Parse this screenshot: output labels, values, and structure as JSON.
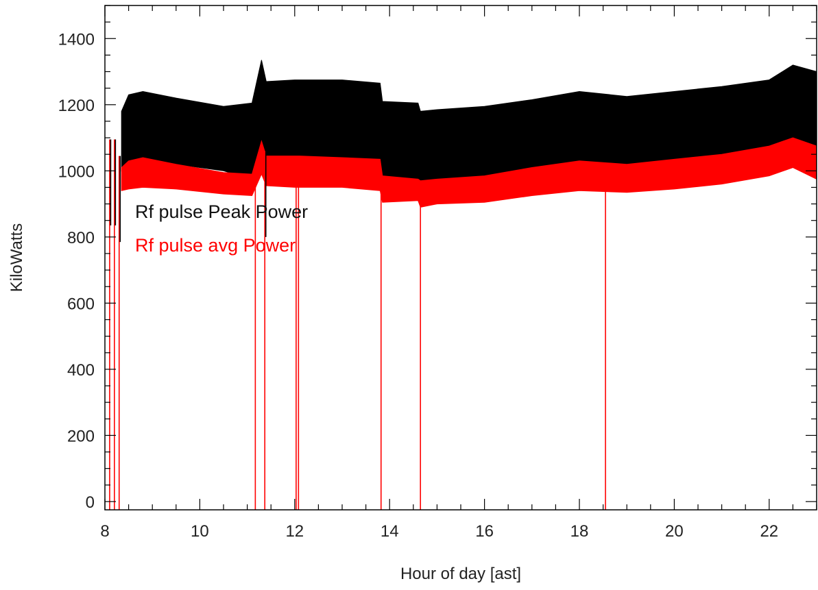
{
  "chart_data": {
    "type": "line",
    "title": "",
    "xlabel": "Hour of day [ast]",
    "ylabel": "KiloWatts",
    "xlim": [
      8,
      23
    ],
    "ylim": [
      -25,
      1500
    ],
    "x_ticks": [
      8,
      10,
      12,
      14,
      16,
      18,
      20,
      22
    ],
    "y_ticks": [
      0,
      200,
      400,
      600,
      800,
      1000,
      1200,
      1400
    ],
    "grid": false,
    "legend_placement": "upper-left inside plot",
    "series": [
      {
        "name": "Rf pulse Peak Power",
        "color": "#000000",
        "style": "dense band between lower and upper envelope",
        "x": [
          8.35,
          8.5,
          8.8,
          9.5,
          10.5,
          11.1,
          11.3,
          11.4,
          12.0,
          12.1,
          13.0,
          13.8,
          13.85,
          14.6,
          14.65,
          15.0,
          16.0,
          17.0,
          18.0,
          19.0,
          20.0,
          21.0,
          22.0,
          22.5,
          23.0
        ],
        "lower": [
          1000,
          1020,
          1030,
          1020,
          1000,
          975,
          1080,
          990,
          980,
          990,
          1000,
          990,
          960,
          960,
          950,
          955,
          960,
          975,
          990,
          985,
          990,
          1000,
          1020,
          1060,
          1010
        ],
        "upper": [
          1180,
          1230,
          1240,
          1220,
          1195,
          1205,
          1335,
          1270,
          1275,
          1275,
          1275,
          1265,
          1210,
          1205,
          1180,
          1185,
          1195,
          1215,
          1240,
          1225,
          1240,
          1255,
          1275,
          1320,
          1300
        ]
      },
      {
        "name": "Rf pulse  avg Power",
        "color": "#ff0000",
        "style": "dense band between lower and upper envelope",
        "x": [
          8.35,
          8.5,
          8.8,
          9.5,
          10.5,
          11.1,
          11.3,
          11.4,
          12.0,
          12.1,
          13.0,
          13.8,
          13.85,
          14.6,
          14.65,
          15.0,
          16.0,
          17.0,
          18.0,
          19.0,
          20.0,
          21.0,
          22.0,
          22.5,
          23.0
        ],
        "lower": [
          940,
          945,
          950,
          945,
          930,
          925,
          990,
          955,
          950,
          950,
          950,
          940,
          905,
          910,
          890,
          900,
          905,
          925,
          940,
          935,
          945,
          960,
          985,
          1010,
          975
        ],
        "upper": [
          1010,
          1030,
          1040,
          1020,
          995,
          990,
          1090,
          1045,
          1045,
          1045,
          1040,
          1035,
          985,
          975,
          970,
          975,
          985,
          1010,
          1030,
          1020,
          1035,
          1050,
          1075,
          1100,
          1075
        ]
      }
    ],
    "dropouts": [
      {
        "x": 8.1,
        "min": 0,
        "max": 1095
      },
      {
        "x": 8.2,
        "min": 0,
        "max": 1095
      },
      {
        "x": 8.3,
        "min": 0,
        "max": 1045
      },
      {
        "x": 11.17,
        "min": 0,
        "max": 1000
      },
      {
        "x": 11.37,
        "min": 0,
        "max": 1060
      },
      {
        "x": 12.03,
        "min": 0,
        "max": 1040
      },
      {
        "x": 12.08,
        "min": 0,
        "max": 1040
      },
      {
        "x": 13.82,
        "min": 0,
        "max": 960
      },
      {
        "x": 14.65,
        "min": 0,
        "max": 960
      },
      {
        "x": 18.55,
        "min": 0,
        "max": 960
      }
    ]
  }
}
